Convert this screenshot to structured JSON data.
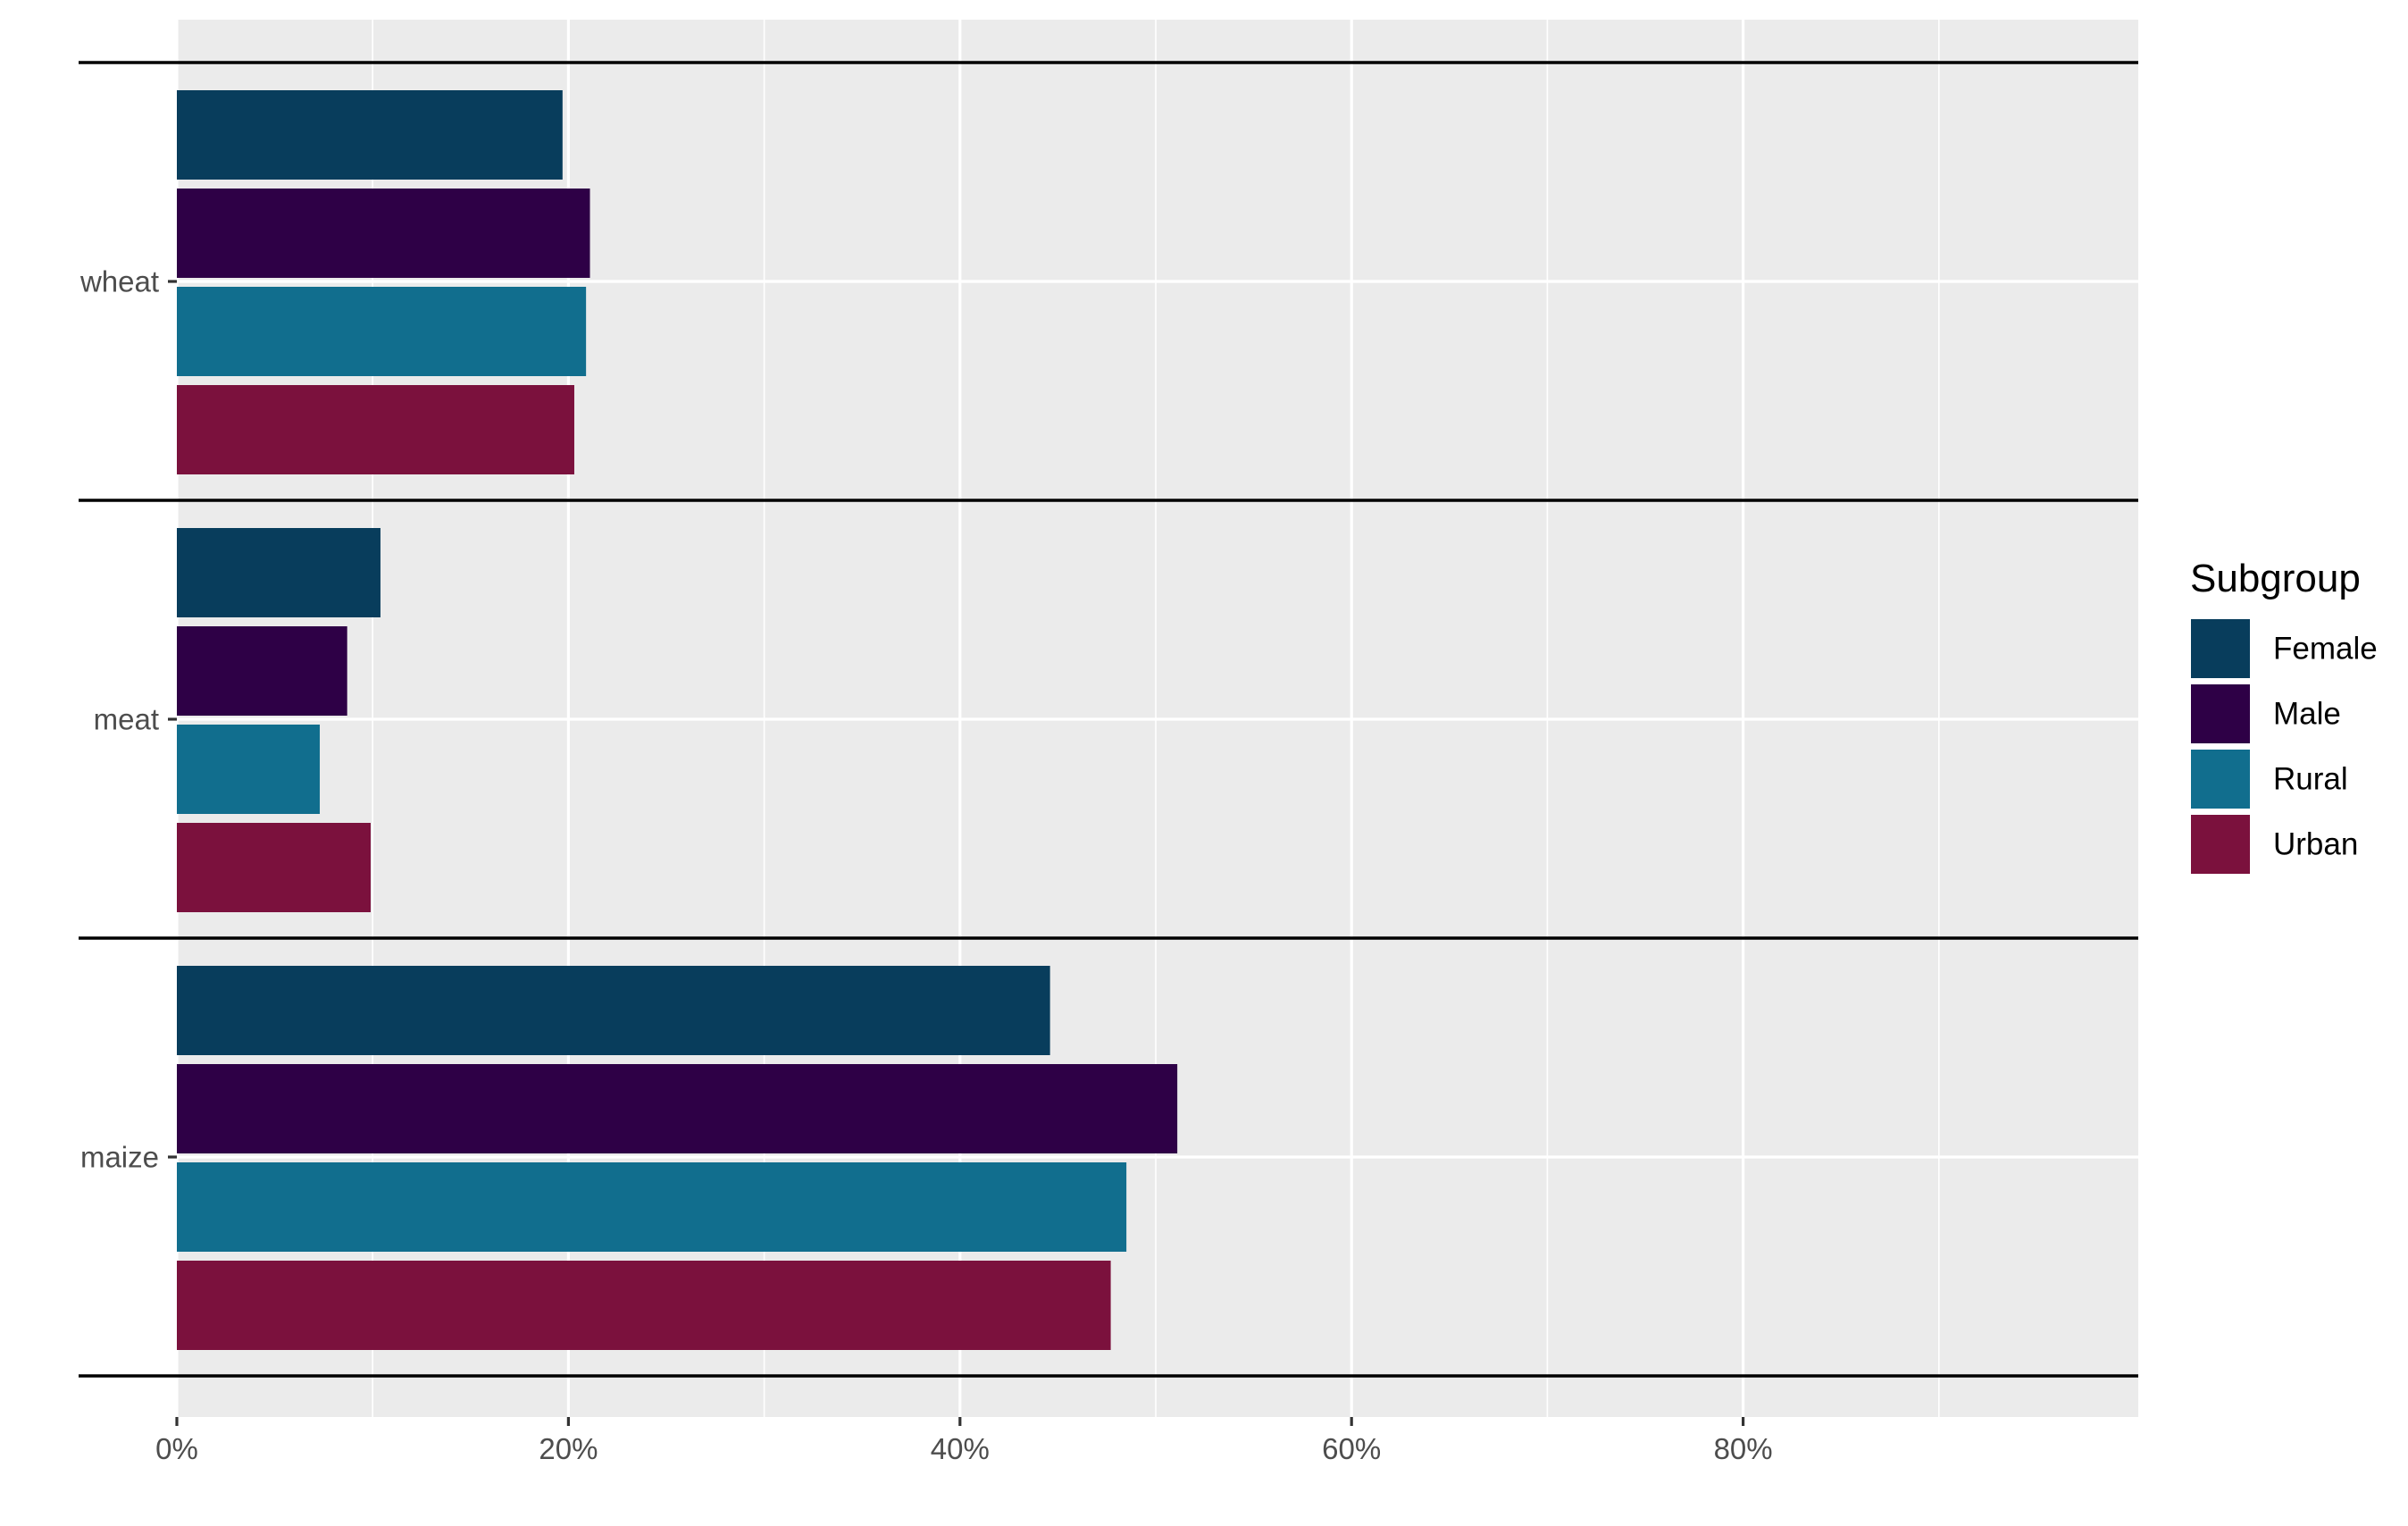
{
  "chart_data": {
    "type": "bar",
    "orientation": "horizontal",
    "categories": [
      "wheat",
      "meat",
      "maize"
    ],
    "series": [
      {
        "name": "Female",
        "color": "#083d5c",
        "values": [
          19.7,
          10.4,
          44.6
        ]
      },
      {
        "name": "Male",
        "color": "#2e0046",
        "values": [
          21.1,
          8.7,
          51.1
        ]
      },
      {
        "name": "Rural",
        "color": "#116e8e",
        "values": [
          20.9,
          7.3,
          48.5
        ]
      },
      {
        "name": "Urban",
        "color": "#7b113d",
        "values": [
          20.3,
          9.9,
          47.7
        ]
      }
    ],
    "xlim": [
      0,
      100
    ],
    "x_ticks": [
      0,
      20,
      40,
      60,
      80
    ],
    "x_tick_labels": [
      "0%",
      "20%",
      "40%",
      "60%",
      "80%"
    ],
    "x_minor_ticks": [
      10,
      30,
      50,
      70,
      90
    ],
    "grid": true,
    "legend": {
      "title": "Subgroup",
      "position": "right"
    }
  },
  "colors": {
    "panel_background": "#ebebeb",
    "grid": "#ffffff",
    "separator": "#000000"
  }
}
